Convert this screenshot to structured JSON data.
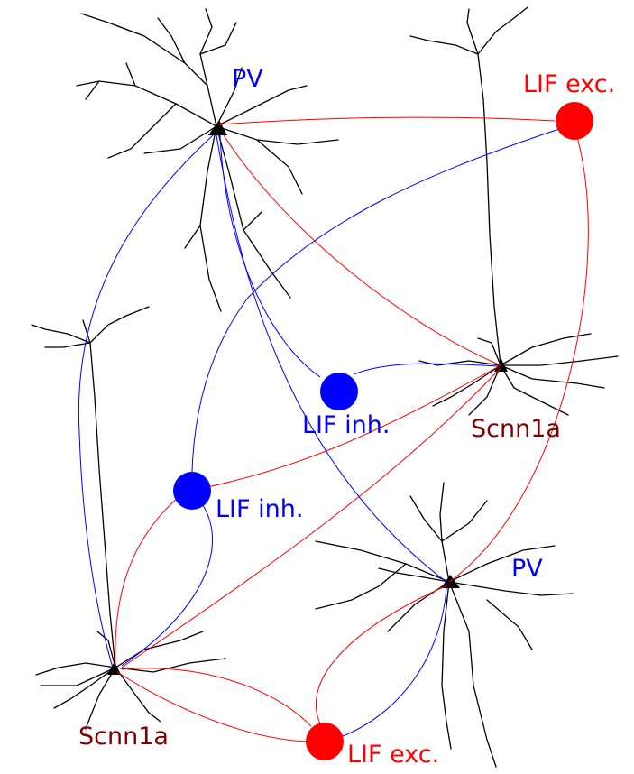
{
  "labels": {
    "pv_top": "PV",
    "lif_exc_top": "LIF exc.",
    "lif_inh_center": "LIF inh.",
    "scnn1a_right": "Scnn1a",
    "lif_inh_left": "LIF inh.",
    "pv_bottom": "PV",
    "scnn1a_left": "Scnn1a",
    "lif_exc_bottom": "LIF exc."
  },
  "colors": {
    "excitatory": "#ff0000",
    "inhibitory": "#0000ff",
    "scnn1a_label": "#800000",
    "neuron": "#000000"
  }
}
